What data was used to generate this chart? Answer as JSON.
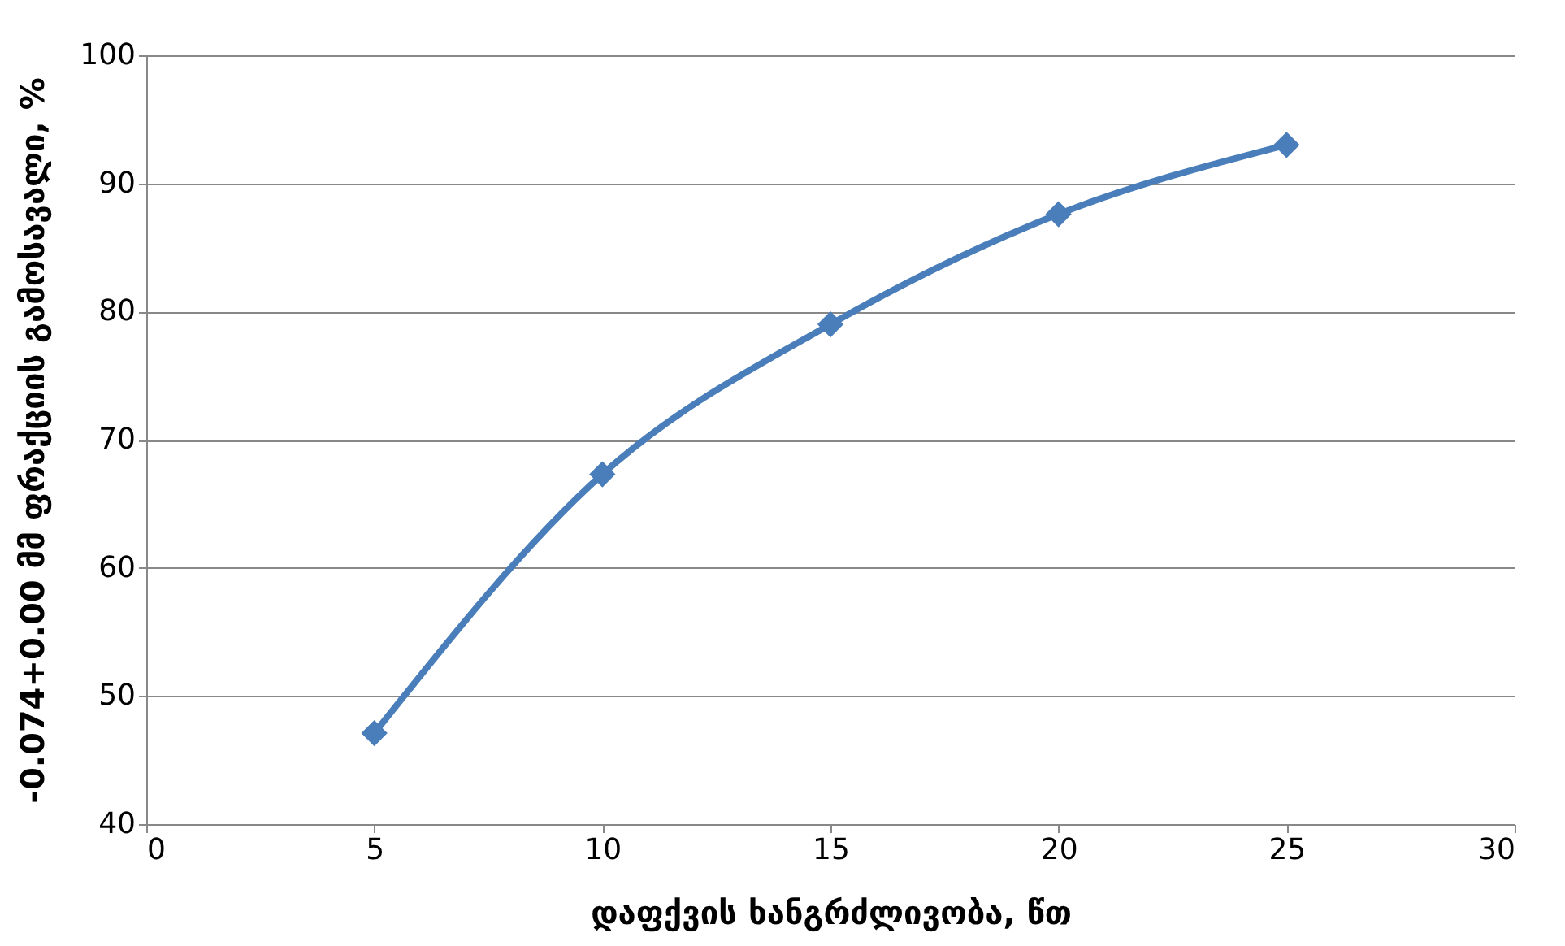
{
  "chart_data": {
    "type": "line",
    "xlabel": "დაფქვის ხანგრძლივობა, წთ",
    "ylabel": "-0.074+0.00 მმ ფრაქციის გამოსავალი, %",
    "x": [
      5,
      10,
      15,
      20,
      25
    ],
    "series": [
      {
        "color": "#4a7ebb",
        "values": [
          47.1,
          67.3,
          79.0,
          87.6,
          93.0
        ]
      }
    ],
    "xlim": [
      0,
      30
    ],
    "xticks": [
      0,
      5,
      10,
      15,
      20,
      25,
      30
    ],
    "ylim": [
      40,
      100
    ],
    "yticks": [
      40,
      50,
      60,
      70,
      80,
      90,
      100
    ],
    "grid": "y",
    "marker": "diamond",
    "line_style": "solid",
    "legend": false
  }
}
